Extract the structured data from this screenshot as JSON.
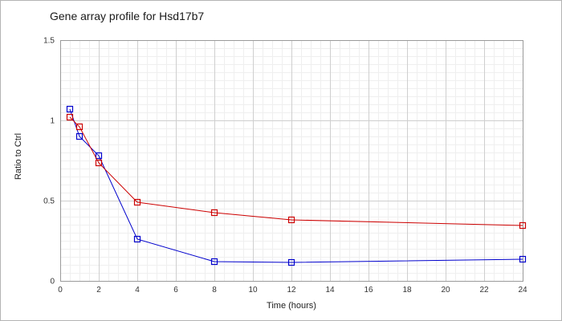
{
  "chart_data": {
    "type": "line",
    "title": "Gene array profile for Hsd17b7",
    "xlabel": "Time (hours)",
    "ylabel": "Ratio to Ctrl",
    "xlim": [
      0,
      24
    ],
    "ylim": [
      0,
      1.5
    ],
    "x_ticks": [
      "0",
      "2",
      "4",
      "6",
      "8",
      "10",
      "12",
      "14",
      "16",
      "18",
      "20",
      "22",
      "24"
    ],
    "y_ticks": [
      "0",
      "0.5",
      "1",
      "1.5"
    ],
    "grid": true,
    "legend": "none",
    "series": [
      {
        "color": "#0000cc",
        "marker": "square",
        "x": [
          0.5,
          1,
          2,
          4,
          8,
          12,
          24
        ],
        "y": [
          1.07,
          0.9,
          0.78,
          0.26,
          0.12,
          0.115,
          0.135
        ]
      },
      {
        "color": "#cc0000",
        "marker": "square",
        "x": [
          0.5,
          1,
          2,
          4,
          8,
          12,
          24
        ],
        "y": [
          1.02,
          0.96,
          0.735,
          0.49,
          0.425,
          0.38,
          0.345
        ]
      }
    ]
  }
}
